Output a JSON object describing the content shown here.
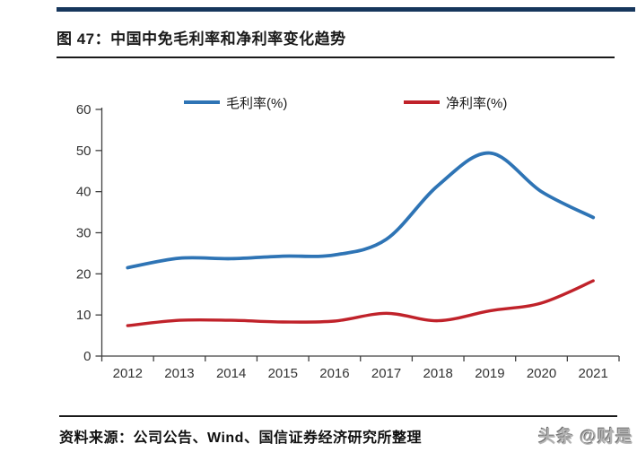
{
  "figure": {
    "title": "图 47：中国中免毛利率和净利率变化趋势",
    "source": "资料来源：公司公告、Wind、国信证券经济研究所整理",
    "watermark": "头条 @财是"
  },
  "chart_data": {
    "type": "line",
    "title": "中国中免毛利率和净利率变化趋势",
    "categories": [
      "2012",
      "2013",
      "2014",
      "2015",
      "2016",
      "2017",
      "2018",
      "2019",
      "2020",
      "2021"
    ],
    "series": [
      {
        "name": "毛利率(%)",
        "color": "#2E74B5",
        "values": [
          21.5,
          23.8,
          23.7,
          24.3,
          24.6,
          28.4,
          41.5,
          49.4,
          40.0,
          33.7
        ]
      },
      {
        "name": "净利率(%)",
        "color": "#C0222A",
        "values": [
          7.4,
          8.7,
          8.7,
          8.3,
          8.5,
          10.4,
          8.6,
          11.0,
          12.9,
          18.3
        ]
      }
    ],
    "xlabel": "",
    "ylabel": "",
    "ylim": [
      0,
      60
    ],
    "yticks": [
      0,
      10,
      20,
      30,
      40,
      50,
      60
    ],
    "grid": false,
    "legend_position": "top",
    "axis_color": "#404040"
  }
}
